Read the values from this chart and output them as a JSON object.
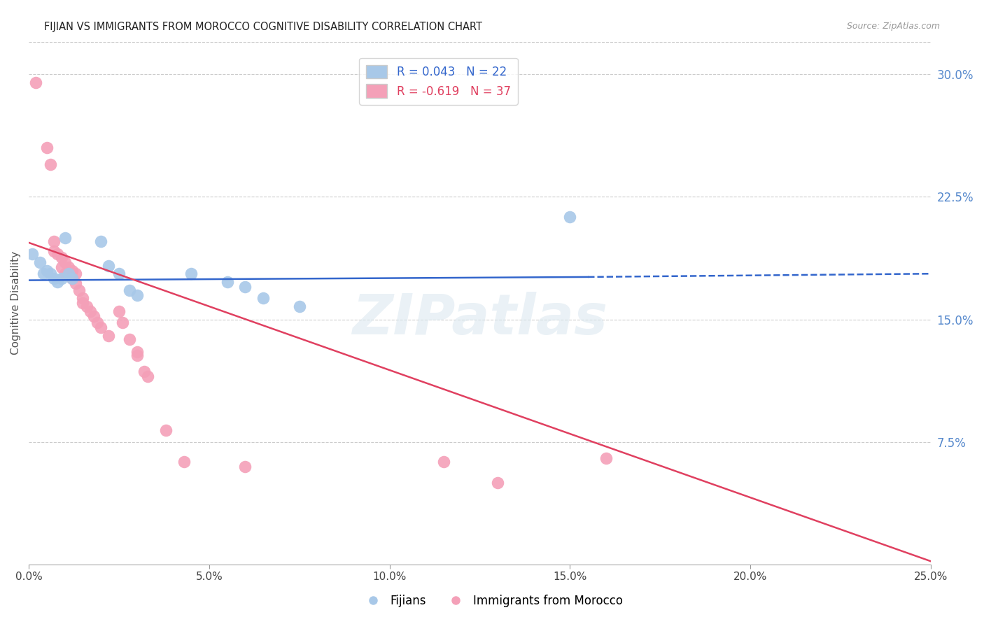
{
  "title": "FIJIAN VS IMMIGRANTS FROM MOROCCO COGNITIVE DISABILITY CORRELATION CHART",
  "source": "Source: ZipAtlas.com",
  "ylabel": "Cognitive Disability",
  "right_ytick_labels": [
    "30.0%",
    "22.5%",
    "15.0%",
    "7.5%"
  ],
  "right_ytick_values": [
    0.3,
    0.225,
    0.15,
    0.075
  ],
  "xlim": [
    0.0,
    0.25
  ],
  "ylim": [
    0.0,
    0.32
  ],
  "xtick_labels": [
    "0.0%",
    "5.0%",
    "10.0%",
    "15.0%",
    "20.0%",
    "25.0%"
  ],
  "xtick_values": [
    0.0,
    0.05,
    0.1,
    0.15,
    0.2,
    0.25
  ],
  "fijian_color": "#a8c8e8",
  "morocco_color": "#f4a0b8",
  "fijian_line_color": "#3366cc",
  "morocco_line_color": "#e04060",
  "watermark": "ZIPatlas",
  "fijian_points": [
    [
      0.001,
      0.19
    ],
    [
      0.003,
      0.185
    ],
    [
      0.004,
      0.178
    ],
    [
      0.005,
      0.18
    ],
    [
      0.006,
      0.178
    ],
    [
      0.007,
      0.175
    ],
    [
      0.008,
      0.173
    ],
    [
      0.009,
      0.175
    ],
    [
      0.01,
      0.2
    ],
    [
      0.011,
      0.178
    ],
    [
      0.012,
      0.175
    ],
    [
      0.02,
      0.198
    ],
    [
      0.022,
      0.183
    ],
    [
      0.025,
      0.178
    ],
    [
      0.028,
      0.168
    ],
    [
      0.03,
      0.165
    ],
    [
      0.045,
      0.178
    ],
    [
      0.055,
      0.173
    ],
    [
      0.06,
      0.17
    ],
    [
      0.065,
      0.163
    ],
    [
      0.075,
      0.158
    ],
    [
      0.15,
      0.213
    ]
  ],
  "morocco_points": [
    [
      0.002,
      0.295
    ],
    [
      0.005,
      0.255
    ],
    [
      0.006,
      0.245
    ],
    [
      0.007,
      0.198
    ],
    [
      0.007,
      0.192
    ],
    [
      0.008,
      0.19
    ],
    [
      0.009,
      0.188
    ],
    [
      0.009,
      0.182
    ],
    [
      0.01,
      0.185
    ],
    [
      0.01,
      0.178
    ],
    [
      0.011,
      0.182
    ],
    [
      0.012,
      0.18
    ],
    [
      0.012,
      0.175
    ],
    [
      0.013,
      0.178
    ],
    [
      0.013,
      0.172
    ],
    [
      0.014,
      0.168
    ],
    [
      0.015,
      0.163
    ],
    [
      0.015,
      0.16
    ],
    [
      0.016,
      0.158
    ],
    [
      0.017,
      0.155
    ],
    [
      0.018,
      0.152
    ],
    [
      0.019,
      0.148
    ],
    [
      0.02,
      0.145
    ],
    [
      0.022,
      0.14
    ],
    [
      0.025,
      0.155
    ],
    [
      0.026,
      0.148
    ],
    [
      0.028,
      0.138
    ],
    [
      0.03,
      0.13
    ],
    [
      0.03,
      0.128
    ],
    [
      0.032,
      0.118
    ],
    [
      0.033,
      0.115
    ],
    [
      0.038,
      0.082
    ],
    [
      0.043,
      0.063
    ],
    [
      0.06,
      0.06
    ],
    [
      0.115,
      0.063
    ],
    [
      0.13,
      0.05
    ],
    [
      0.16,
      0.065
    ]
  ],
  "fijian_trendline_solid": [
    [
      0.0,
      0.174
    ],
    [
      0.155,
      0.176
    ]
  ],
  "fijian_trendline_dashed": [
    [
      0.155,
      0.176
    ],
    [
      0.25,
      0.178
    ]
  ],
  "morocco_trendline": [
    [
      0.0,
      0.197
    ],
    [
      0.25,
      0.002
    ]
  ]
}
